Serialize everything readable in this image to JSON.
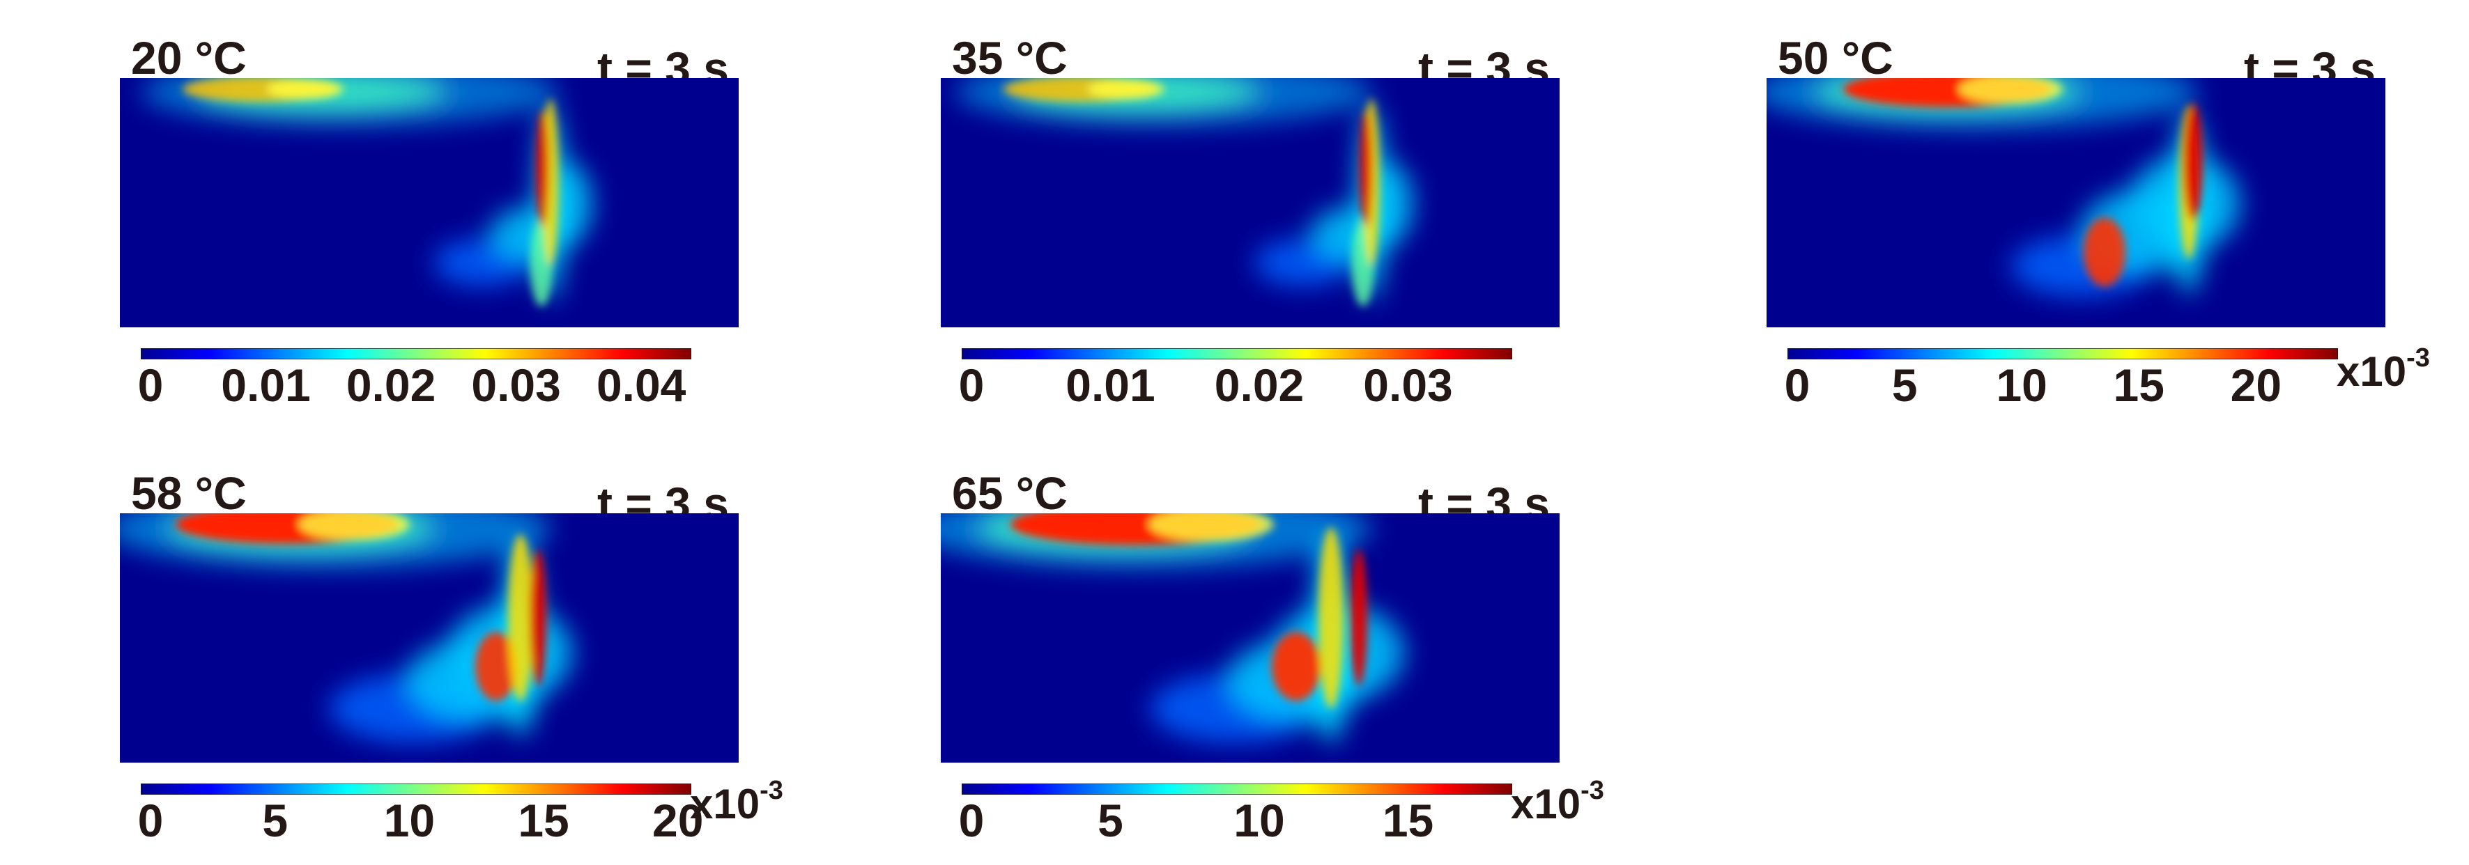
{
  "panels": [
    {
      "temperature": "20 °C",
      "time": "t = 3 s",
      "colorbar_ticks": [
        "0",
        "0.01",
        "0.02",
        "0.03",
        "0.04"
      ],
      "colorbar_max": 0.044,
      "multiplier_prefix": "",
      "multiplier_exp": "",
      "intensity": 1.0
    },
    {
      "temperature": "35 °C",
      "time": "t = 3 s",
      "colorbar_ticks": [
        "0",
        "0.01",
        "0.02",
        "0.03"
      ],
      "colorbar_max": 0.037,
      "multiplier_prefix": "",
      "multiplier_exp": "",
      "intensity": 1.0
    },
    {
      "temperature": "50 °C",
      "time": "t = 3 s",
      "colorbar_ticks": [
        "0",
        "5",
        "10",
        "15",
        "20"
      ],
      "colorbar_max": 23.5,
      "multiplier_prefix": "x10",
      "multiplier_exp": "-3",
      "intensity": 1.0
    },
    {
      "temperature": "58 °C",
      "time": "t = 3 s",
      "colorbar_ticks": [
        "0",
        "5",
        "10",
        "15",
        "20"
      ],
      "colorbar_max": 20.5,
      "multiplier_prefix": "x10",
      "multiplier_exp": "-3",
      "intensity": 1.0
    },
    {
      "temperature": "65 °C",
      "time": "t = 3 s",
      "colorbar_ticks": [
        "0",
        "5",
        "10",
        "15"
      ],
      "colorbar_max": 18.5,
      "multiplier_prefix": "x10",
      "multiplier_exp": "-3",
      "intensity": 1.0
    }
  ],
  "colormap": "jet",
  "colors": {
    "background": "#00008f",
    "text": "#231815"
  }
}
